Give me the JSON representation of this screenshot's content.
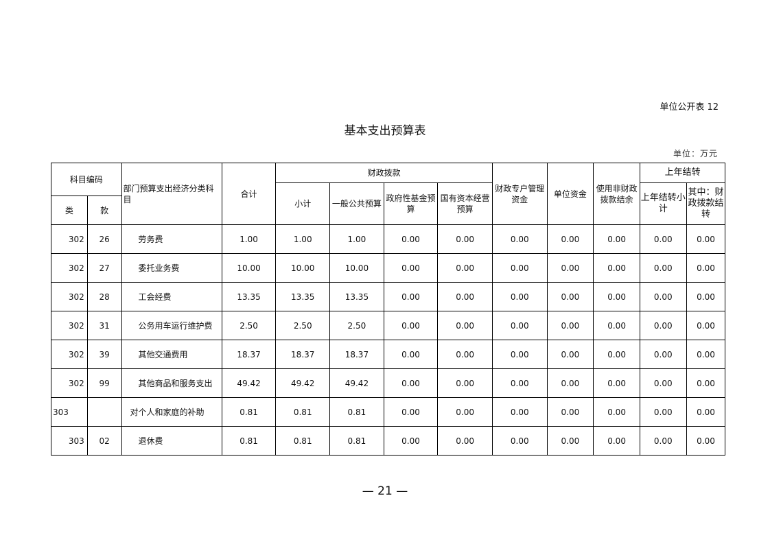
{
  "form_code": "单位公开表 12",
  "title": "基本支出预算表",
  "unit": "单位：万元",
  "headers": {
    "subject_code": "科目编码",
    "class": "类",
    "item": "款",
    "econ_subject": "部门预算支出经济分类科目",
    "total": "合计",
    "fiscal": "财政拨款",
    "subtotal": "小计",
    "general": "一般公共预算",
    "gov_fund": "政府性基金预算",
    "state_capital": "国有资本经营预算",
    "special_account": "财政专户管理资金",
    "unit_funds": "单位资金",
    "non_fiscal": "使用非财政拨款结余",
    "carryover": "上年结转",
    "carry_subtotal": "上年结转小计",
    "carry_fiscal": "其中：财政拨款结转"
  },
  "rows": [
    {
      "cls": "302",
      "item": "26",
      "name": "劳务费",
      "vals": [
        "1.00",
        "1.00",
        "1.00",
        "0.00",
        "0.00",
        "0.00",
        "0.00",
        "0.00",
        "0.00",
        "0.00"
      ]
    },
    {
      "cls": "302",
      "item": "27",
      "name": "委托业务费",
      "vals": [
        "10.00",
        "10.00",
        "10.00",
        "0.00",
        "0.00",
        "0.00",
        "0.00",
        "0.00",
        "0.00",
        "0.00"
      ]
    },
    {
      "cls": "302",
      "item": "28",
      "name": "工会经费",
      "vals": [
        "13.35",
        "13.35",
        "13.35",
        "0.00",
        "0.00",
        "0.00",
        "0.00",
        "0.00",
        "0.00",
        "0.00"
      ]
    },
    {
      "cls": "302",
      "item": "31",
      "name": "公务用车运行维护费",
      "vals": [
        "2.50",
        "2.50",
        "2.50",
        "0.00",
        "0.00",
        "0.00",
        "0.00",
        "0.00",
        "0.00",
        "0.00"
      ]
    },
    {
      "cls": "302",
      "item": "39",
      "name": "其他交通费用",
      "vals": [
        "18.37",
        "18.37",
        "18.37",
        "0.00",
        "0.00",
        "0.00",
        "0.00",
        "0.00",
        "0.00",
        "0.00"
      ]
    },
    {
      "cls": "302",
      "item": "99",
      "name": "其他商品和服务支出",
      "vals": [
        "49.42",
        "49.42",
        "49.42",
        "0.00",
        "0.00",
        "0.00",
        "0.00",
        "0.00",
        "0.00",
        "0.00"
      ]
    },
    {
      "cls": "303",
      "item": "",
      "name": "对个人和家庭的补助",
      "vals": [
        "0.81",
        "0.81",
        "0.81",
        "0.00",
        "0.00",
        "0.00",
        "0.00",
        "0.00",
        "0.00",
        "0.00"
      ]
    },
    {
      "cls": "303",
      "item": "02",
      "name": "退休费",
      "vals": [
        "0.81",
        "0.81",
        "0.81",
        "0.00",
        "0.00",
        "0.00",
        "0.00",
        "0.00",
        "0.00",
        "0.00"
      ]
    }
  ],
  "page_number": "— 21 —"
}
